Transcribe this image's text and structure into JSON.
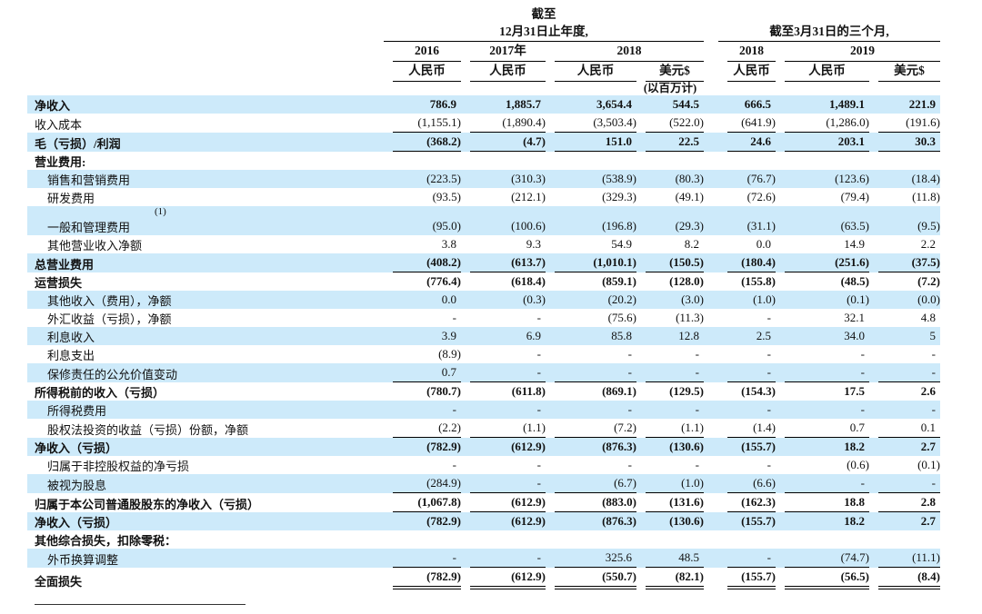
{
  "table": {
    "header": {
      "annual_caption_line1": "截至",
      "annual_caption_line2": "12月31日止年度,",
      "quarter_caption": "截至3月31日的三个月,",
      "years": [
        "2016",
        "2017年",
        "2018",
        "2018",
        "2019"
      ],
      "currencies": [
        "人民币",
        "人民币",
        "人民币",
        "美元$",
        "人民币",
        "人民币",
        "美元$"
      ],
      "unit_note": "(以百万计)"
    },
    "colors": {
      "stripe": "#cdeafa",
      "rule": "#000000"
    },
    "rows": [
      {
        "label": "净收入",
        "style": "bold",
        "values": [
          "786.9",
          "1,885.7",
          "3,654.4",
          "544.5",
          "666.5",
          "1,489.1",
          "221.9"
        ]
      },
      {
        "label": "收入成本",
        "style": "plain",
        "line": "single",
        "values": [
          "(1,155.1)",
          "(1,890.4)",
          "(3,503.4)",
          "(522.0)",
          "(641.9)",
          "(1,286.0)",
          "(191.6)"
        ]
      },
      {
        "label": "毛（亏损）/利润",
        "style": "bold",
        "line": "single",
        "values": [
          "(368.2)",
          "(4.7)",
          "151.0",
          "22.5",
          "24.6",
          "203.1",
          "30.3"
        ]
      },
      {
        "label": "营业费用:",
        "style": "bold",
        "values": [
          "",
          "",
          "",
          "",
          "",
          "",
          ""
        ]
      },
      {
        "label": "销售和营销费用",
        "style": "indent",
        "values": [
          "(223.5)",
          "(310.3)",
          "(538.9)",
          "(80.3)",
          "(76.7)",
          "(123.6)",
          "(18.4)"
        ]
      },
      {
        "label": "研发费用",
        "style": "indent",
        "values": [
          "(93.5)",
          "(212.1)",
          "(329.3)",
          "(49.1)",
          "(72.6)",
          "(79.4)",
          "(11.8)"
        ]
      },
      {
        "label": "一般和管理费用",
        "sup": "(1)",
        "style": "indent",
        "values": [
          "(95.0)",
          "(100.6)",
          "(196.8)",
          "(29.3)",
          "(31.1)",
          "(63.5)",
          "(9.5)"
        ]
      },
      {
        "label": "其他营业收入净额",
        "style": "indent",
        "values": [
          "3.8",
          "9.3",
          "54.9",
          "8.2",
          "0.0",
          "14.9",
          "2.2"
        ]
      },
      {
        "label": "总营业费用",
        "style": "bold",
        "line": "single",
        "values": [
          "(408.2)",
          "(613.7)",
          "(1,010.1)",
          "(150.5)",
          "(180.4)",
          "(251.6)",
          "(37.5)"
        ]
      },
      {
        "label": "运营损失",
        "style": "bold",
        "values": [
          "(776.4)",
          "(618.4)",
          "(859.1)",
          "(128.0)",
          "(155.8)",
          "(48.5)",
          "(7.2)"
        ]
      },
      {
        "label": "其他收入（费用），净额",
        "style": "indent",
        "values": [
          "0.0",
          "(0.3)",
          "(20.2)",
          "(3.0)",
          "(1.0)",
          "(0.1)",
          "(0.0)"
        ]
      },
      {
        "label": "外汇收益（亏损），净额",
        "style": "indent",
        "values": [
          "-",
          "-",
          "(75.6)",
          "(11.3)",
          "-",
          "32.1",
          "4.8"
        ]
      },
      {
        "label": "利息收入",
        "style": "indent",
        "values": [
          "3.9",
          "6.9",
          "85.8",
          "12.8",
          "2.5",
          "34.0",
          "5"
        ]
      },
      {
        "label": "利息支出",
        "style": "indent",
        "values": [
          "(8.9)",
          "-",
          "-",
          "-",
          "-",
          "-",
          "-"
        ]
      },
      {
        "label": "保修责任的公允价值变动",
        "style": "indent",
        "line": "single",
        "values": [
          "0.7",
          "-",
          "-",
          "-",
          "-",
          "-",
          "-"
        ]
      },
      {
        "label": "所得税前的收入（亏损）",
        "style": "bold",
        "values": [
          "(780.7)",
          "(611.8)",
          "(869.1)",
          "(129.5)",
          "(154.3)",
          "17.5",
          "2.6"
        ]
      },
      {
        "label": "所得税费用",
        "style": "indent",
        "values": [
          "-",
          "-",
          "-",
          "-",
          "-",
          "-",
          "-"
        ]
      },
      {
        "label": "股权法投资的收益（亏损）份额，净额",
        "style": "indent",
        "line": "single",
        "values": [
          "(2.2)",
          "(1.1)",
          "(7.2)",
          "(1.1)",
          "(1.4)",
          "0.7",
          "0.1"
        ]
      },
      {
        "label": "净收入（亏损）",
        "style": "bold",
        "values": [
          "(782.9)",
          "(612.9)",
          "(876.3)",
          "(130.6)",
          "(155.7)",
          "18.2",
          "2.7"
        ]
      },
      {
        "label": "归属于非控股权益的净亏损",
        "style": "indent",
        "values": [
          "-",
          "-",
          "-",
          "-",
          "-",
          "(0.6)",
          "(0.1)"
        ]
      },
      {
        "label": "被视为股息",
        "style": "indent",
        "line": "single",
        "values": [
          "(284.9)",
          "-",
          "(6.7)",
          "(1.0)",
          "(6.6)",
          "-",
          "-"
        ]
      },
      {
        "label": "归属于本公司普通股股东的净收入（亏损）",
        "style": "bold",
        "line": "single",
        "values": [
          "(1,067.8)",
          "(612.9)",
          "(883.0)",
          "(131.6)",
          "(162.3)",
          "18.8",
          "2.8"
        ]
      },
      {
        "label": "净收入（亏损）",
        "style": "bold",
        "values": [
          "(782.9)",
          "(612.9)",
          "(876.3)",
          "(130.6)",
          "(155.7)",
          "18.2",
          "2.7"
        ]
      },
      {
        "label": "其他综合损失，扣除零税：",
        "style": "bold",
        "values": [
          "",
          "",
          "",
          "",
          "",
          "",
          ""
        ]
      },
      {
        "label": "外币换算调整",
        "style": "indent",
        "line": "single",
        "values": [
          "-",
          "-",
          "325.6",
          "48.5",
          "-",
          "(74.7)",
          "(11.1)"
        ]
      },
      {
        "label": "全面损失",
        "style": "bold",
        "line": "double",
        "values": [
          "(782.9)",
          "(612.9)",
          "(550.7)",
          "(82.1)",
          "(155.7)",
          "(56.5)",
          "(8.4)"
        ]
      }
    ]
  }
}
